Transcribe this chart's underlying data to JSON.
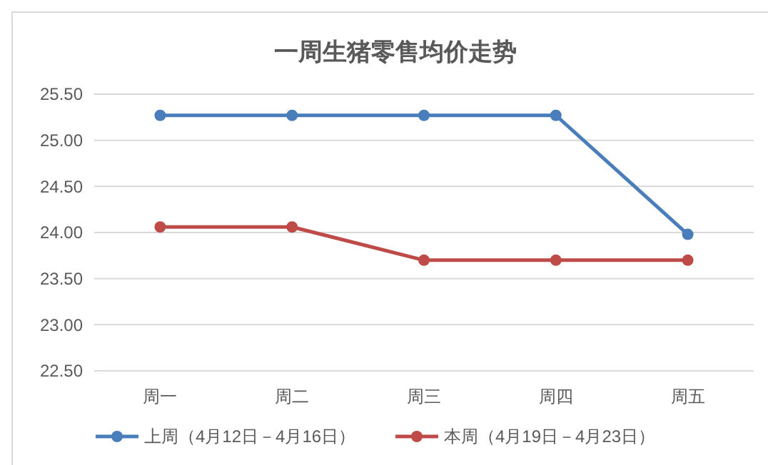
{
  "chart_data": {
    "type": "line",
    "title": "一周生猪零售均价走势",
    "categories": [
      "周一",
      "周二",
      "周三",
      "周四",
      "周五"
    ],
    "series": [
      {
        "name": "上周（4月12日－4月16日）",
        "color": "#4a7ebb",
        "values": [
          25.27,
          25.27,
          25.27,
          25.27,
          23.98
        ]
      },
      {
        "name": "本周（4月19日－4月23日）",
        "color": "#be4b48",
        "values": [
          24.06,
          24.06,
          23.7,
          23.7,
          23.7
        ]
      }
    ],
    "ylim": [
      22.5,
      25.5
    ],
    "yticks": [
      {
        "value": 22.5,
        "label": "22.50"
      },
      {
        "value": 23,
        "label": "23.00"
      },
      {
        "value": 23.5,
        "label": "23.50"
      },
      {
        "value": 24,
        "label": "24.00"
      },
      {
        "value": 24.5,
        "label": "24.50"
      },
      {
        "value": 25,
        "label": "25.00"
      },
      {
        "value": 25.5,
        "label": "25.50"
      }
    ],
    "grid": "y",
    "legend": "bottom",
    "marker": "circle",
    "line_style": "solid"
  }
}
